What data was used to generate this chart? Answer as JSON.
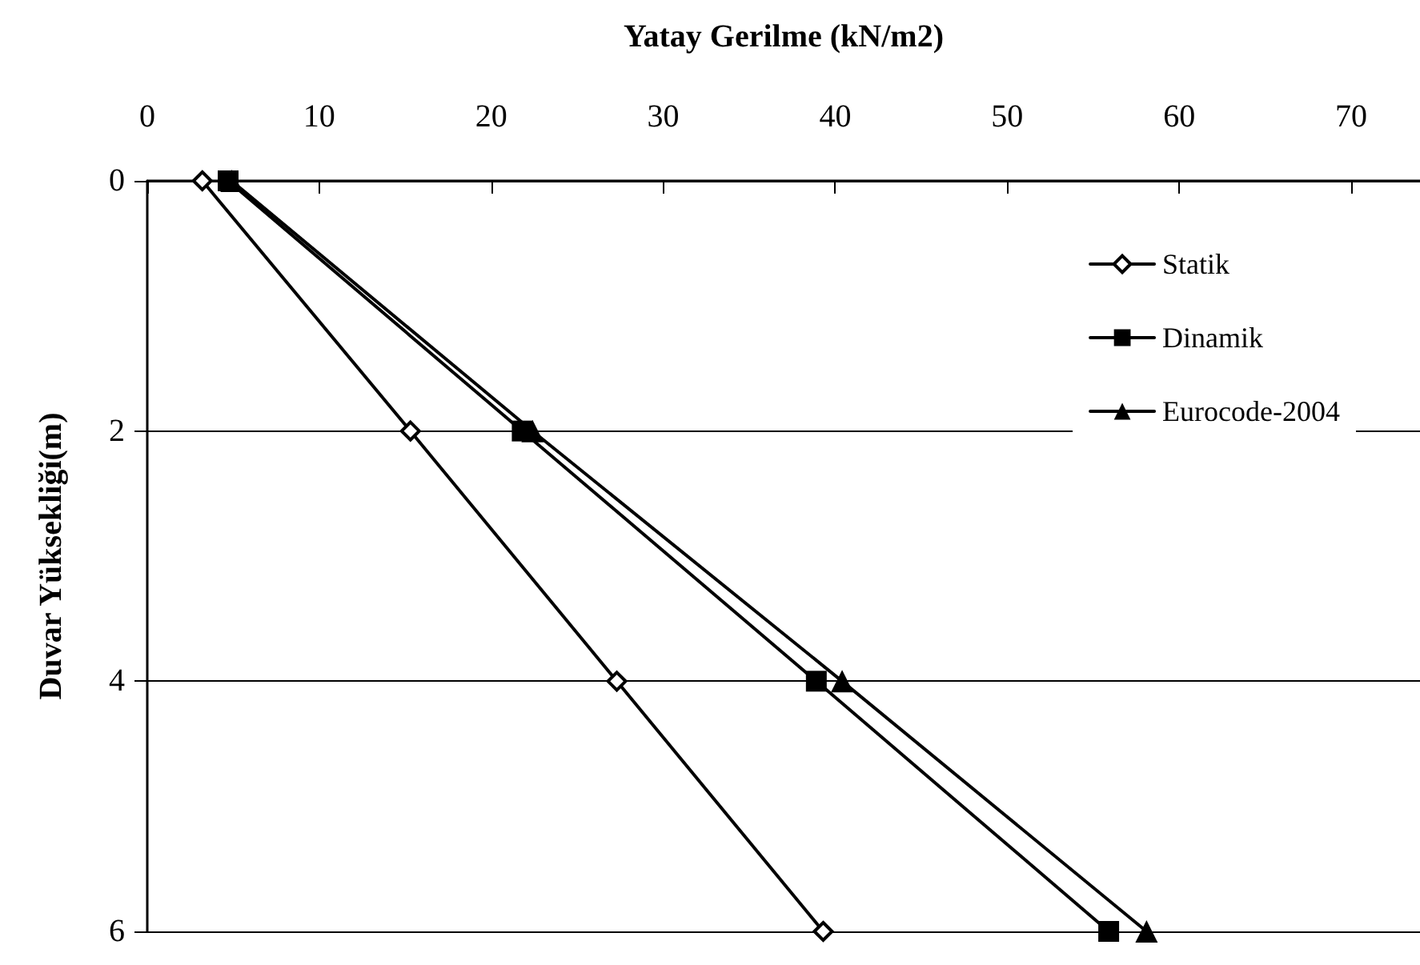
{
  "chart_data": {
    "type": "line",
    "xlabel": "Yatay Gerilme (kN/m2)",
    "ylabel": "Duvar Yüksekliği(m)",
    "xlim": [
      0,
      74
    ],
    "xticks": [
      0,
      10,
      20,
      30,
      40,
      50,
      60,
      70
    ],
    "ylim": [
      6,
      0
    ],
    "yticks": [
      0,
      2,
      4,
      6
    ],
    "grid": "y",
    "legend": "top right",
    "line_style": "solid",
    "series": [
      {
        "name": "Statik",
        "color": "#000000",
        "marker": "diamond",
        "x": [
          3.2,
          15.3,
          27.3,
          39.3
        ],
        "values": [
          0,
          2,
          4,
          6
        ]
      },
      {
        "name": "Dinamik",
        "color": "#000000",
        "marker": "square",
        "x": [
          4.7,
          21.8,
          38.9,
          55.9
        ],
        "values": [
          0,
          2,
          4,
          6
        ]
      },
      {
        "name": "Eurocode-2004",
        "color": "#000000",
        "marker": "triangle",
        "x": [
          4.9,
          22.4,
          40.4,
          58.1
        ],
        "values": [
          0,
          2,
          4,
          6
        ]
      }
    ]
  }
}
